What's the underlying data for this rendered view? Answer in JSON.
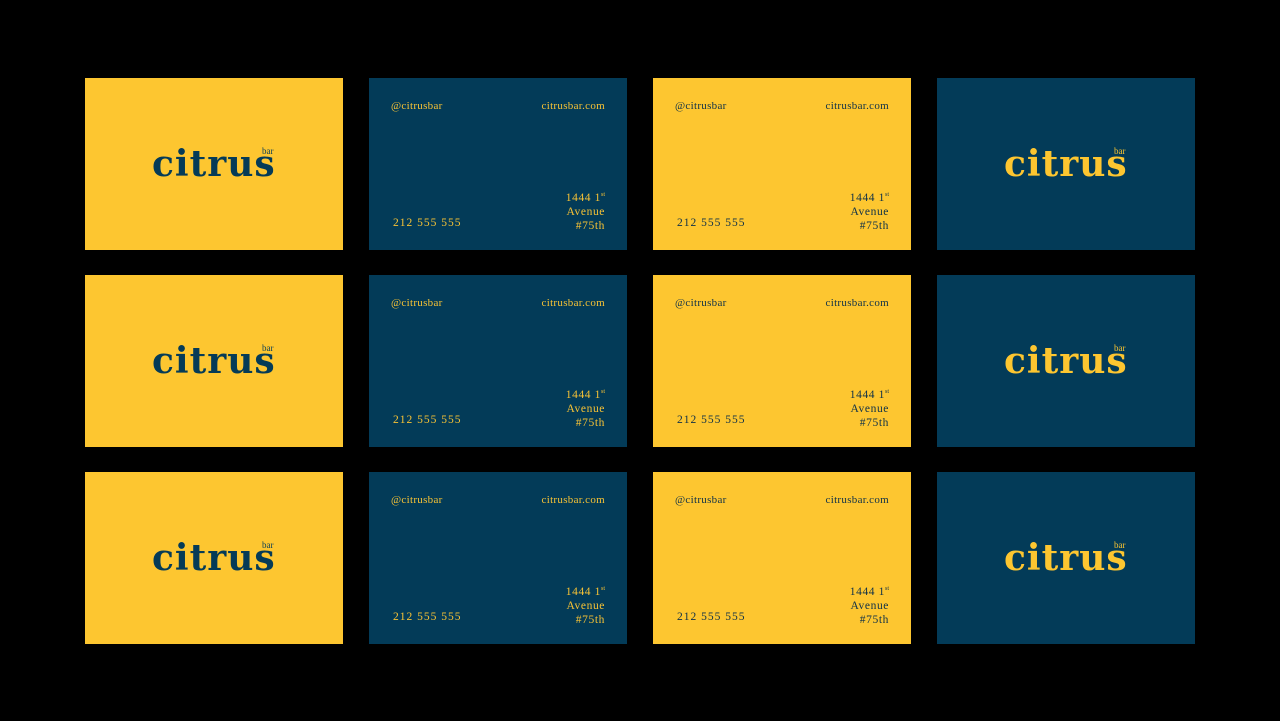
{
  "brand": {
    "name": "citrus",
    "sub": "bar"
  },
  "contact": {
    "handle": "@citrusbar",
    "website": "citrusbar.com",
    "phone": "212 555 555",
    "address_number": "1444 1",
    "address_superscript": "st",
    "address_line2": "Avenue",
    "address_line3": "#75th"
  },
  "colors": {
    "background": "#000000",
    "yellow": "#FDC630",
    "navy": "#033B58"
  },
  "layout": {
    "rows": 3,
    "columns": [
      "yellow-logo",
      "navy-info",
      "yellow-info",
      "navy-logo"
    ]
  }
}
